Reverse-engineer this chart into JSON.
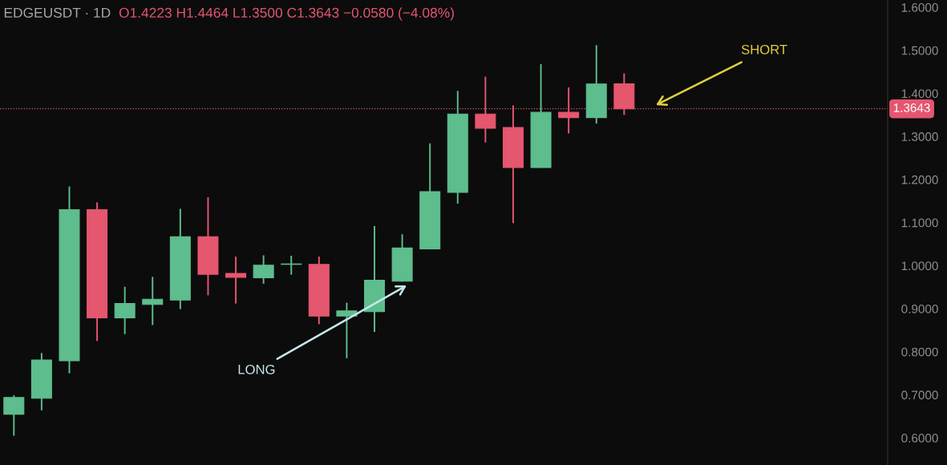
{
  "chart_data": {
    "type": "candlestick",
    "title": "EDGEUSDT · 1D",
    "subtitle": "O1.4223 H1.4464 L1.3500 C1.3643 −0.0580 (−4.08%)",
    "categories": [
      null,
      null,
      null,
      null,
      null,
      null,
      null,
      null,
      null,
      null,
      null,
      null,
      null,
      null,
      null,
      null,
      null,
      null,
      null,
      null,
      null,
      null,
      null,
      null,
      null,
      null,
      null,
      null,
      null,
      null,
      null,
      null
    ],
    "ohlc": [
      [
        0.655,
        0.699,
        0.605,
        0.694
      ],
      [
        0.692,
        0.797,
        0.664,
        0.781
      ],
      [
        0.779,
        1.184,
        0.75,
        1.13
      ],
      [
        1.13,
        1.147,
        0.825,
        0.879
      ],
      [
        0.879,
        0.951,
        0.841,
        0.912
      ],
      [
        0.91,
        0.974,
        0.862,
        0.922
      ],
      [
        0.92,
        1.132,
        0.899,
        1.067
      ],
      [
        1.067,
        1.159,
        0.931,
        0.98
      ],
      [
        0.982,
        1.021,
        0.912,
        0.973
      ],
      [
        0.972,
        1.024,
        0.958,
        1.001
      ],
      [
        1.003,
        1.023,
        0.979,
        1.004
      ],
      [
        1.003,
        1.021,
        0.864,
        0.883
      ],
      [
        0.883,
        0.914,
        0.785,
        0.895
      ],
      [
        0.893,
        1.092,
        0.846,
        0.966
      ],
      [
        0.964,
        1.073,
        0.963,
        1.041
      ],
      [
        1.039,
        1.284,
        1.038,
        1.172
      ],
      [
        1.17,
        1.406,
        1.144,
        1.352
      ],
      [
        1.352,
        1.439,
        1.286,
        1.319
      ],
      [
        1.321,
        1.372,
        1.099,
        1.228
      ],
      [
        1.228,
        1.468,
        1.227,
        1.356
      ],
      [
        1.356,
        1.414,
        1.307,
        1.344
      ],
      [
        1.344,
        1.512,
        1.33,
        1.422
      ],
      [
        1.4223,
        1.4464,
        1.35,
        1.3643
      ],
      null,
      null,
      null,
      null,
      null,
      null,
      null,
      null,
      null
    ],
    "colors": [
      "#5dbd8c",
      "#5dbd8c",
      "#5dbd8c",
      "#e5566f",
      "#5dbd8c",
      "#5dbd8c",
      "#5dbd8c",
      "#e5566f",
      "#e5566f",
      "#5dbd8c",
      "#5dbd8c",
      "#e5566f",
      "#5dbd8c",
      "#5dbd8c",
      "#5dbd8c",
      "#5dbd8c",
      "#5dbd8c",
      "#e5566f",
      "#e5566f",
      "#5dbd8c",
      "#e5566f",
      "#5dbd8c",
      "#e5566f",
      null,
      null,
      null,
      null,
      null,
      null,
      null,
      null,
      null
    ],
    "ylim": [
      0.537,
      1.617
    ],
    "yticks": [
      {
        "value": 0.6,
        "label": "0.6000"
      },
      {
        "value": 0.7,
        "label": "0.7000"
      },
      {
        "value": 0.8,
        "label": "0.8000"
      },
      {
        "value": 0.9,
        "label": "0.9000"
      },
      {
        "value": 1.0,
        "label": "1.0000"
      },
      {
        "value": 1.1,
        "label": "1.1000"
      },
      {
        "value": 1.2,
        "label": "1.2000"
      },
      {
        "value": 1.3,
        "label": "1.3000"
      },
      {
        "value": 1.4,
        "label": "1.4000"
      },
      {
        "value": 1.5,
        "label": "1.5000"
      },
      {
        "value": 1.6,
        "label": "1.6000"
      }
    ],
    "tick_labels": "y",
    "ref_lines": [
      {
        "axis": "y",
        "value": 1.3643,
        "label": "1.3643",
        "color": "#e5566f",
        "line_style": "dotted"
      }
    ],
    "annotations": [
      "LONG",
      "SHORT"
    ]
  }
}
